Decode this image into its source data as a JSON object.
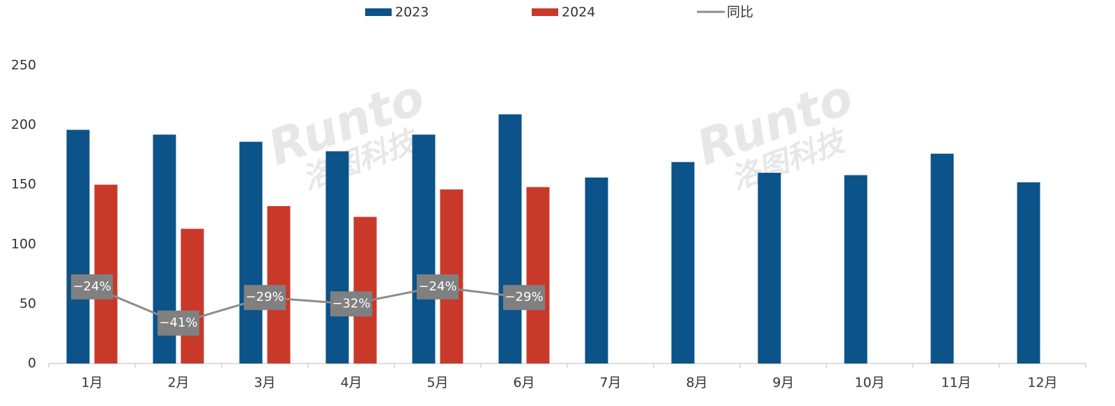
{
  "chart_data": {
    "type": "bar",
    "categories": [
      "1月",
      "2月",
      "3月",
      "4月",
      "5月",
      "6月",
      "7月",
      "8月",
      "9月",
      "10月",
      "11月",
      "12月"
    ],
    "series": [
      {
        "name": "2023",
        "color": "#0b5389",
        "values": [
          196,
          192,
          186,
          178,
          192,
          209,
          156,
          169,
          160,
          158,
          176,
          152
        ]
      },
      {
        "name": "2024",
        "color": "#c9392a",
        "values": [
          150,
          113,
          132,
          123,
          146,
          148,
          null,
          null,
          null,
          null,
          null,
          null
        ]
      },
      {
        "name": "同比",
        "type": "line",
        "axis": "y2",
        "color": "#8c8c8c",
        "values": [
          -24,
          -41,
          -29,
          -32,
          -24,
          -29,
          null,
          null,
          null,
          null,
          null,
          null
        ],
        "value_labels": [
          "−24%",
          "−41%",
          "−29%",
          "−32%",
          "−24%",
          "−29%",
          null,
          null,
          null,
          null,
          null,
          null
        ]
      }
    ],
    "ylim": [
      0,
      250
    ],
    "yticks": [
      0,
      50,
      100,
      150,
      200,
      250
    ],
    "y2lim": [
      -60,
      80
    ],
    "grid": false,
    "legend": "top",
    "watermark": [
      "Runto",
      "洛图科技"
    ]
  }
}
